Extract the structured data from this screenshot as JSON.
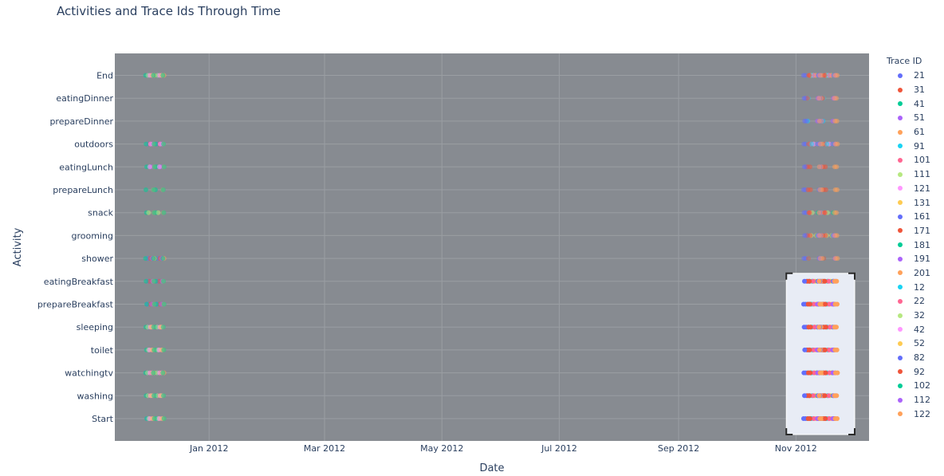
{
  "chart_data": {
    "type": "scatter",
    "title": "Activities and Trace Ids Through Time",
    "xlabel": "Date",
    "ylabel": "Activity",
    "legend_title": "Trace ID",
    "legend_position": "right",
    "grid": true,
    "xlim": [
      "2011-11-13",
      "2012-12-09"
    ],
    "x_ticks": [
      "Jan 2012",
      "Mar 2012",
      "May 2012",
      "Jul 2012",
      "Sep 2012",
      "Nov 2012"
    ],
    "x_tick_dates": [
      "2012-01-01",
      "2012-03-01",
      "2012-05-01",
      "2012-07-01",
      "2012-09-01",
      "2012-11-01"
    ],
    "categories": [
      "Start",
      "washing",
      "watchingtv",
      "toilet",
      "sleeping",
      "prepareBreakfast",
      "eatingBreakfast",
      "shower",
      "grooming",
      "snack",
      "prepareLunch",
      "eatingLunch",
      "outdoors",
      "prepareDinner",
      "eatingDinner",
      "End"
    ],
    "selection": {
      "x_range": [
        "2012-10-27",
        "2012-12-11"
      ],
      "y_range": [
        "Start",
        "eatingBreakfast"
      ]
    },
    "series": [
      {
        "name": "21",
        "color": "#636efa",
        "group": 1,
        "dates": [
          "2011-11-30",
          "2011-12-05"
        ],
        "activities": [
          "Start",
          "washing",
          "watchingtv",
          "toilet",
          "sleeping",
          "prepareBreakfast",
          "eatingBreakfast",
          "shower",
          "outdoors",
          "End"
        ]
      },
      {
        "name": "31",
        "color": "#ef553b",
        "group": 1,
        "dates": [
          "2011-12-01",
          "2011-12-06"
        ],
        "activities": [
          "Start",
          "washing",
          "watchingtv",
          "toilet",
          "sleeping",
          "prepareBreakfast",
          "eatingBreakfast",
          "shower",
          "outdoors",
          "End"
        ]
      },
      {
        "name": "41",
        "color": "#00cc96",
        "group": 1,
        "dates": [
          "2011-11-29",
          "2011-12-04"
        ],
        "activities": [
          "Start",
          "washing",
          "watchingtv",
          "toilet",
          "sleeping",
          "prepareBreakfast",
          "eatingBreakfast",
          "shower",
          "snack",
          "prepareLunch",
          "eatingLunch",
          "outdoors",
          "End"
        ]
      },
      {
        "name": "51",
        "color": "#ab63fa",
        "group": 1,
        "dates": [
          "2011-12-02",
          "2011-12-07"
        ],
        "activities": [
          "Start",
          "washing",
          "watchingtv",
          "toilet",
          "sleeping",
          "prepareBreakfast",
          "eatingBreakfast",
          "shower",
          "eatingLunch",
          "outdoors",
          "End"
        ]
      },
      {
        "name": "61",
        "color": "#ffa15a",
        "group": 1,
        "dates": [
          "2011-12-03",
          "2011-12-08"
        ],
        "activities": [
          "Start",
          "washing",
          "watchingtv",
          "toilet",
          "sleeping",
          "prepareBreakfast",
          "eatingBreakfast",
          "shower",
          "snack",
          "prepareLunch",
          "eatingLunch",
          "outdoors",
          "End"
        ]
      },
      {
        "name": "91",
        "color": "#19d3f3",
        "group": 2,
        "dates": [
          "2012-11-07",
          "2012-11-15"
        ],
        "activities": [
          "Start",
          "washing",
          "watchingtv",
          "toilet",
          "sleeping",
          "prepareBreakfast",
          "eatingBreakfast",
          "shower",
          "grooming",
          "snack",
          "outdoors",
          "eatingDinner",
          "prepareDinner",
          "End"
        ]
      },
      {
        "name": "101",
        "color": "#ff6692",
        "group": 2,
        "dates": [
          "2012-11-08",
          "2012-11-16"
        ],
        "activities": [
          "Start",
          "washing",
          "watchingtv",
          "toilet",
          "sleeping",
          "prepareBreakfast",
          "eatingBreakfast",
          "grooming",
          "snack",
          "outdoors",
          "End"
        ]
      },
      {
        "name": "111",
        "color": "#b6e880",
        "group": 2,
        "dates": [
          "2012-11-09",
          "2012-11-17"
        ],
        "activities": [
          "Start",
          "washing",
          "watchingtv",
          "toilet",
          "sleeping",
          "prepareBreakfast",
          "eatingBreakfast",
          "grooming",
          "snack",
          "End"
        ]
      },
      {
        "name": "121",
        "color": "#ff97ff",
        "group": 2,
        "dates": [
          "2012-11-10",
          "2012-11-18"
        ],
        "activities": [
          "Start",
          "washing",
          "watchingtv",
          "toilet",
          "sleeping",
          "prepareBreakfast",
          "eatingBreakfast",
          "outdoors",
          "End"
        ]
      },
      {
        "name": "131",
        "color": "#fecb52",
        "group": 2,
        "dates": [
          "2012-11-11",
          "2012-11-19"
        ],
        "activities": [
          "Start",
          "washing",
          "watchingtv",
          "toilet",
          "sleeping",
          "prepareBreakfast",
          "eatingBreakfast",
          "grooming",
          "End"
        ]
      },
      {
        "name": "161",
        "color": "#636efa",
        "group": 2,
        "dates": [
          "2012-11-06",
          "2012-11-14"
        ],
        "activities": [
          "Start",
          "washing",
          "watchingtv",
          "toilet",
          "sleeping",
          "prepareBreakfast",
          "eatingBreakfast",
          "shower",
          "grooming",
          "snack",
          "prepareLunch",
          "eatingLunch",
          "outdoors",
          "prepareDinner",
          "eatingDinner",
          "End"
        ]
      },
      {
        "name": "171",
        "color": "#ef553b",
        "group": 2,
        "dates": [
          "2012-11-07",
          "2012-11-15"
        ],
        "activities": [
          "Start",
          "washing",
          "watchingtv",
          "toilet",
          "sleeping",
          "prepareBreakfast",
          "eatingBreakfast",
          "shower",
          "grooming",
          "snack",
          "prepareLunch",
          "eatingLunch",
          "outdoors",
          "eatingDinner",
          "End"
        ]
      },
      {
        "name": "181",
        "color": "#00cc96",
        "group": 2,
        "dates": [
          "2012-11-12",
          "2012-11-20"
        ],
        "activities": [
          "Start",
          "washing",
          "watchingtv",
          "toilet",
          "sleeping",
          "prepareBreakfast",
          "eatingBreakfast",
          "grooming",
          "snack",
          "outdoors",
          "End"
        ]
      },
      {
        "name": "191",
        "color": "#ab63fa",
        "group": 2,
        "dates": [
          "2012-11-13",
          "2012-11-21"
        ],
        "activities": [
          "Start",
          "washing",
          "watchingtv",
          "toilet",
          "sleeping",
          "prepareBreakfast",
          "eatingBreakfast",
          "shower",
          "grooming",
          "outdoors",
          "eatingDinner",
          "End"
        ]
      },
      {
        "name": "201",
        "color": "#ffa15a",
        "group": 2,
        "dates": [
          "2012-11-14",
          "2012-11-22"
        ],
        "activities": [
          "Start",
          "washing",
          "watchingtv",
          "toilet",
          "sleeping",
          "prepareBreakfast",
          "eatingBreakfast",
          "shower",
          "grooming",
          "snack",
          "prepareLunch",
          "eatingLunch",
          "outdoors",
          "prepareDinner",
          "eatingDinner",
          "End"
        ]
      },
      {
        "name": "12",
        "color": "#19d3f3",
        "group": 2,
        "dates": [
          "2012-11-09",
          "2012-11-17"
        ],
        "activities": [
          "Start",
          "washing",
          "watchingtv",
          "toilet",
          "sleeping",
          "prepareBreakfast",
          "eatingBreakfast",
          "outdoors",
          "End"
        ]
      },
      {
        "name": "22",
        "color": "#ff6692",
        "group": 2,
        "dates": [
          "2012-11-10",
          "2012-11-18"
        ],
        "activities": [
          "Start",
          "washing",
          "watchingtv",
          "toilet",
          "sleeping",
          "prepareBreakfast",
          "eatingBreakfast",
          "End"
        ]
      },
      {
        "name": "32",
        "color": "#b6e880",
        "group": 1,
        "dates": [
          "2011-11-30",
          "2011-12-05"
        ],
        "activities": [
          "Start",
          "washing",
          "watchingtv",
          "toilet",
          "sleeping",
          "snack",
          "End"
        ]
      },
      {
        "name": "42",
        "color": "#ff97ff",
        "group": 1,
        "dates": [
          "2011-12-01",
          "2011-12-06"
        ],
        "activities": [
          "Start",
          "washing",
          "watchingtv",
          "toilet",
          "sleeping",
          "eatingLunch",
          "outdoors",
          "End"
        ]
      },
      {
        "name": "52",
        "color": "#fecb52",
        "group": 1,
        "dates": [
          "2011-12-02",
          "2011-12-07"
        ],
        "activities": [
          "Start",
          "washing",
          "watchingtv",
          "toilet",
          "sleeping",
          "End"
        ]
      },
      {
        "name": "82",
        "color": "#636efa",
        "group": 2,
        "dates": [
          "2012-11-05",
          "2012-11-13"
        ],
        "activities": [
          "Start",
          "washing",
          "watchingtv",
          "toilet",
          "sleeping",
          "prepareBreakfast",
          "eatingBreakfast",
          "shower",
          "grooming",
          "snack",
          "prepareLunch",
          "eatingLunch",
          "outdoors",
          "prepareDinner",
          "eatingDinner",
          "End"
        ]
      },
      {
        "name": "92",
        "color": "#ef553b",
        "group": 2,
        "dates": [
          "2012-11-08",
          "2012-11-16"
        ],
        "activities": [
          "Start",
          "washing",
          "watchingtv",
          "toilet",
          "sleeping",
          "prepareBreakfast",
          "eatingBreakfast",
          "grooming",
          "snack",
          "prepareLunch",
          "eatingLunch",
          "End"
        ]
      },
      {
        "name": "102",
        "color": "#00cc96",
        "group": 1,
        "dates": [
          "2011-12-03",
          "2011-12-08"
        ],
        "activities": [
          "Start",
          "washing",
          "watchingtv",
          "toilet",
          "sleeping",
          "prepareBreakfast",
          "eatingBreakfast",
          "shower",
          "snack",
          "prepareLunch",
          "eatingLunch",
          "outdoors",
          "End"
        ]
      },
      {
        "name": "112",
        "color": "#ab63fa",
        "group": 2,
        "dates": [
          "2012-11-12",
          "2012-11-20"
        ],
        "activities": [
          "Start",
          "washing",
          "watchingtv",
          "toilet",
          "sleeping",
          "prepareBreakfast",
          "eatingBreakfast",
          "grooming",
          "outdoors",
          "eatingDinner",
          "prepareDinner",
          "End"
        ]
      },
      {
        "name": "122",
        "color": "#ffa15a",
        "group": 2,
        "dates": [
          "2012-11-13",
          "2012-11-21"
        ],
        "activities": [
          "Start",
          "washing",
          "watchingtv",
          "toilet",
          "sleeping",
          "prepareBreakfast",
          "eatingBreakfast",
          "shower",
          "grooming",
          "snack",
          "prepareLunch",
          "eatingLunch",
          "outdoors",
          "prepareDinner",
          "eatingDinner",
          "End"
        ]
      }
    ]
  }
}
